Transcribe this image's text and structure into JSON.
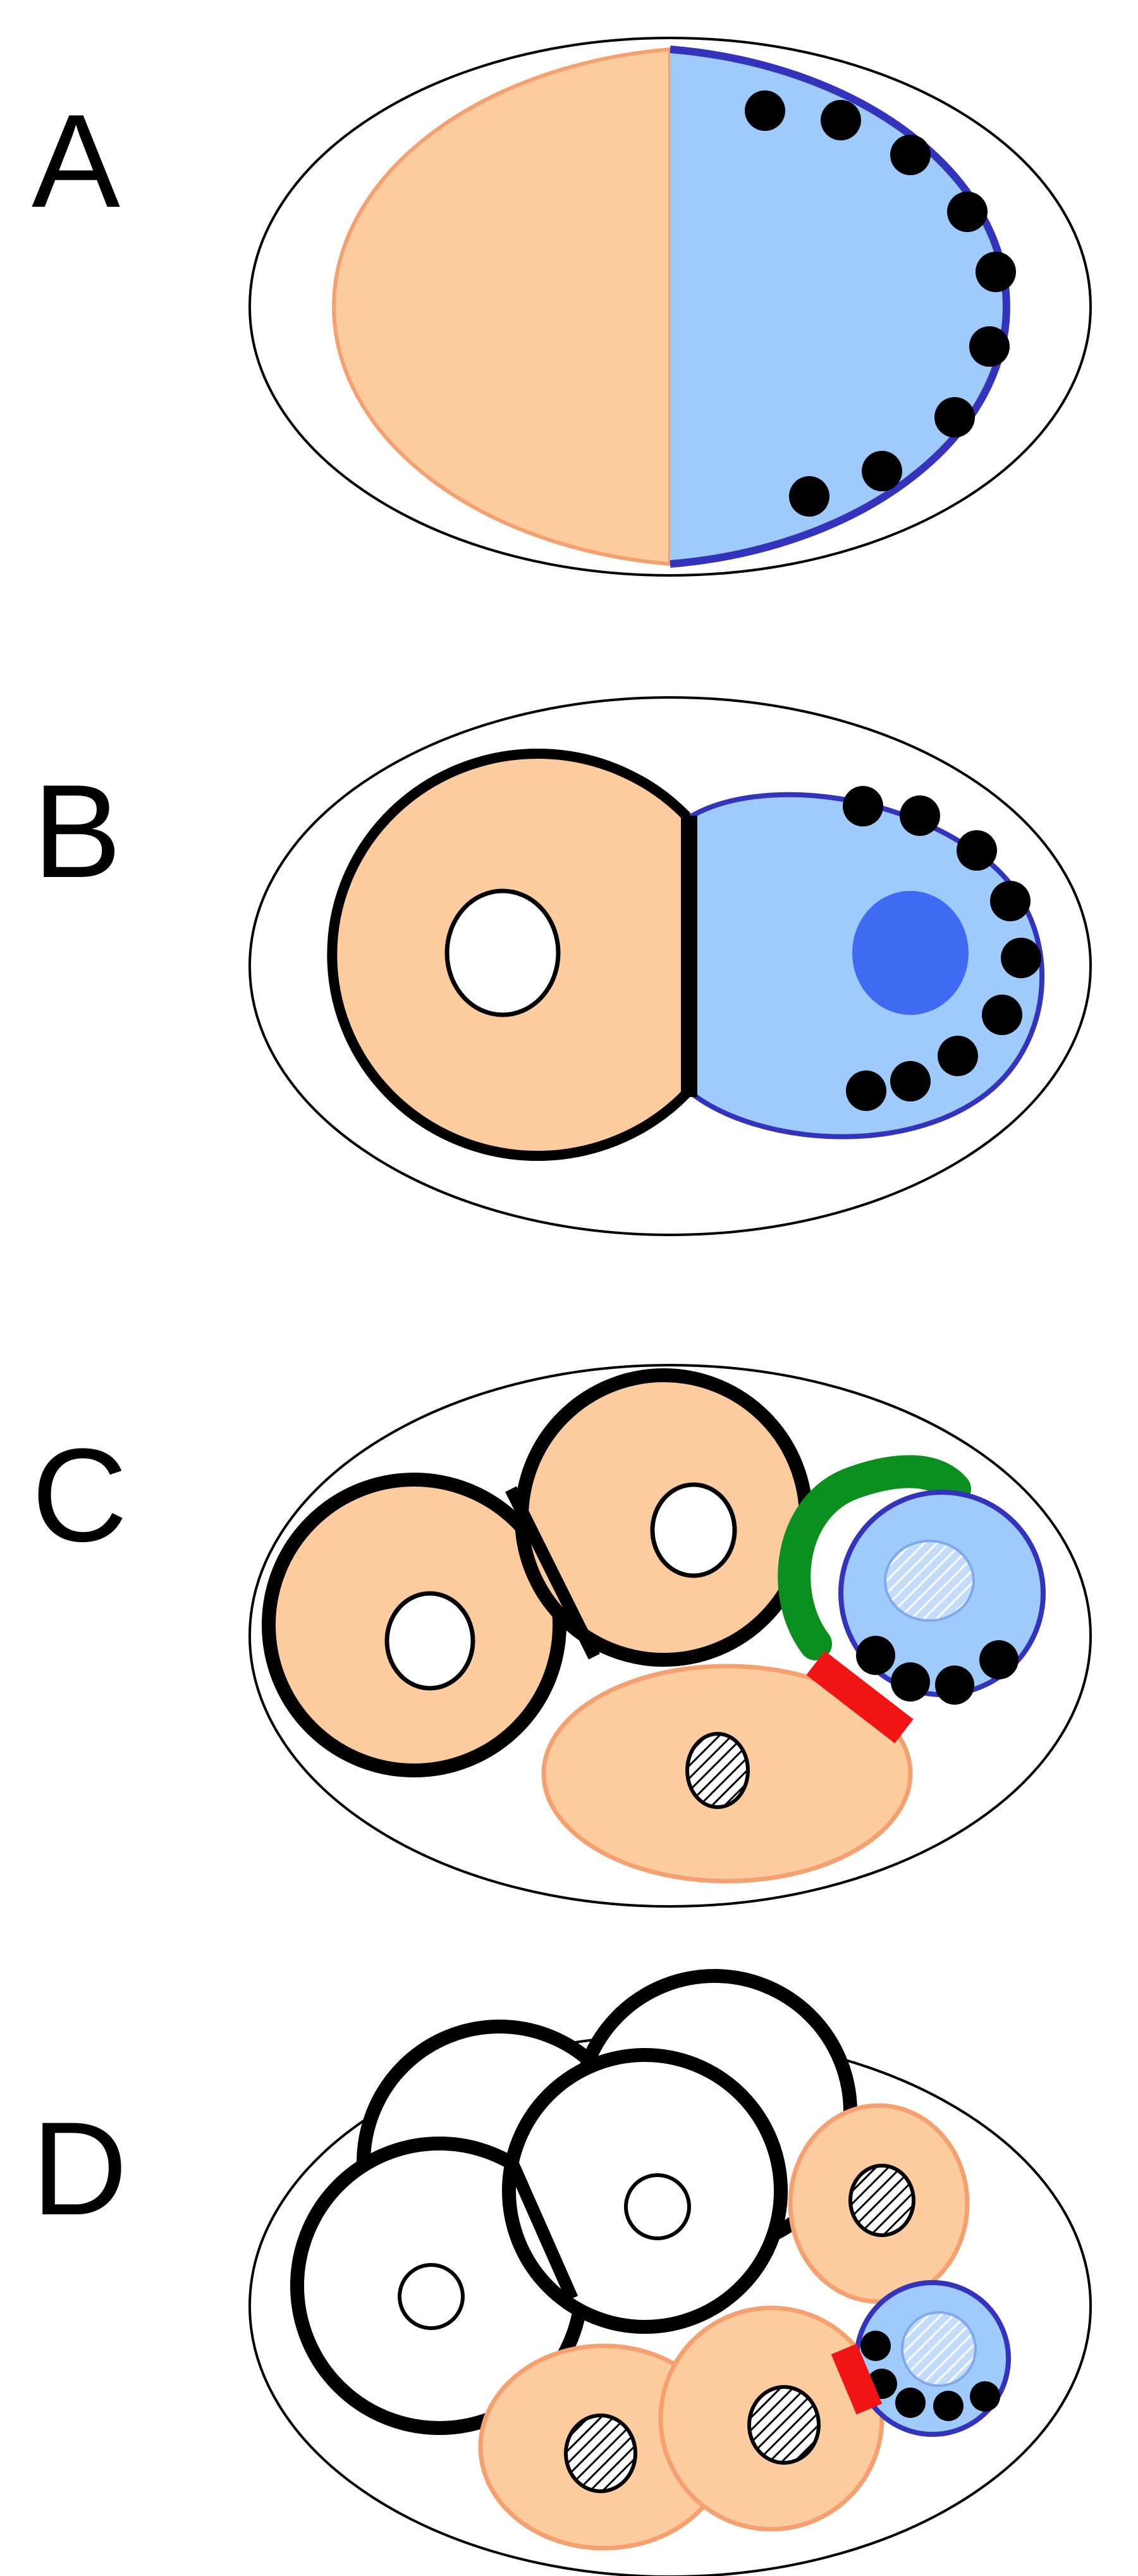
{
  "figure": {
    "panels": [
      {
        "label": "A"
      },
      {
        "label": "B"
      },
      {
        "label": "C"
      },
      {
        "label": "D"
      }
    ],
    "colors": {
      "peach_cell": "#FCCB9E",
      "peach_outline": "#F5A06E",
      "blue_cell": "#9ECBFA",
      "blue_outline": "#3333BB",
      "blue_nucleus": "#3F6BF2",
      "green_cap": "#0B8F1E",
      "red_contact": "#F01414",
      "granule": "#000000",
      "eggshell": "#000000"
    },
    "icons": [
      "eggshell-outline",
      "p-granule-dot",
      "hatched-nucleus",
      "open-nucleus",
      "cell-contact-bar"
    ]
  }
}
